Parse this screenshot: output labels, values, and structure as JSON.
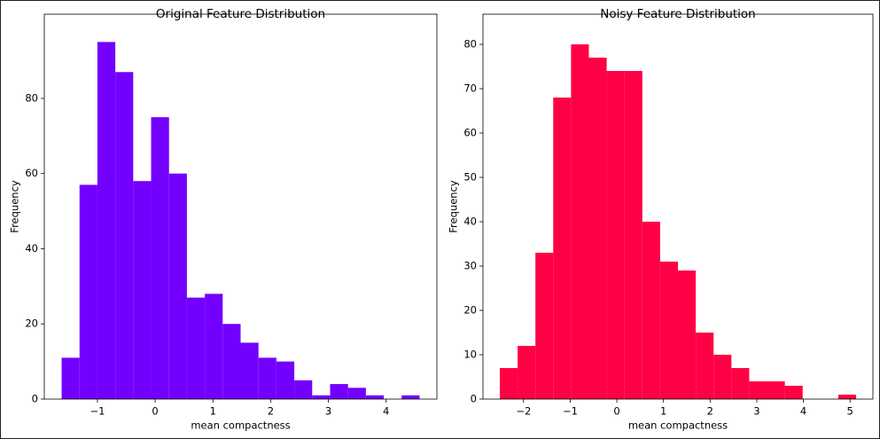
{
  "chart_data": [
    {
      "type": "histogram",
      "title": "Original Feature Distribution",
      "xlabel": "mean compactness",
      "ylabel": "Frequency",
      "color": "#7300ff",
      "bins": [
        -1.62,
        -1.31,
        -1.0,
        -0.69,
        -0.38,
        -0.07,
        0.24,
        0.55,
        0.86,
        1.17,
        1.48,
        1.79,
        2.1,
        2.41,
        2.72,
        3.03,
        3.34,
        3.65,
        3.96,
        4.27,
        4.58
      ],
      "values": [
        11,
        57,
        95,
        87,
        58,
        75,
        60,
        27,
        28,
        20,
        15,
        11,
        10,
        5,
        1,
        4,
        3,
        1,
        0,
        1
      ],
      "xlim": [
        -1.92,
        4.88
      ],
      "ylim": [
        0,
        102.4
      ],
      "xticks": [
        {
          "value": -1,
          "label": "−1"
        },
        0,
        1,
        2,
        3,
        4
      ],
      "yticks": [
        0,
        20,
        40,
        60,
        80
      ]
    },
    {
      "type": "histogram",
      "title": "Noisy Feature Distribution",
      "xlabel": "mean compactness",
      "ylabel": "Frequency",
      "color": "#ff0044",
      "bins": [
        -2.51,
        -2.128,
        -1.746,
        -1.364,
        -0.982,
        -0.6,
        -0.218,
        0.164,
        0.546,
        0.928,
        1.31,
        1.692,
        2.074,
        2.456,
        2.838,
        3.22,
        3.602,
        3.984,
        4.366,
        4.748,
        5.13
      ],
      "values": [
        7,
        12,
        33,
        68,
        80,
        77,
        74,
        74,
        40,
        31,
        29,
        15,
        10,
        7,
        4,
        4,
        3,
        0,
        0,
        1
      ],
      "xlim": [
        -2.87,
        5.49
      ],
      "ylim": [
        0,
        86.8
      ],
      "xticks": [
        {
          "value": -2,
          "label": "−2"
        },
        {
          "value": -1,
          "label": "−1"
        },
        0,
        1,
        2,
        3,
        4,
        5
      ],
      "yticks": [
        0,
        10,
        20,
        30,
        40,
        50,
        60,
        70,
        80
      ]
    }
  ]
}
